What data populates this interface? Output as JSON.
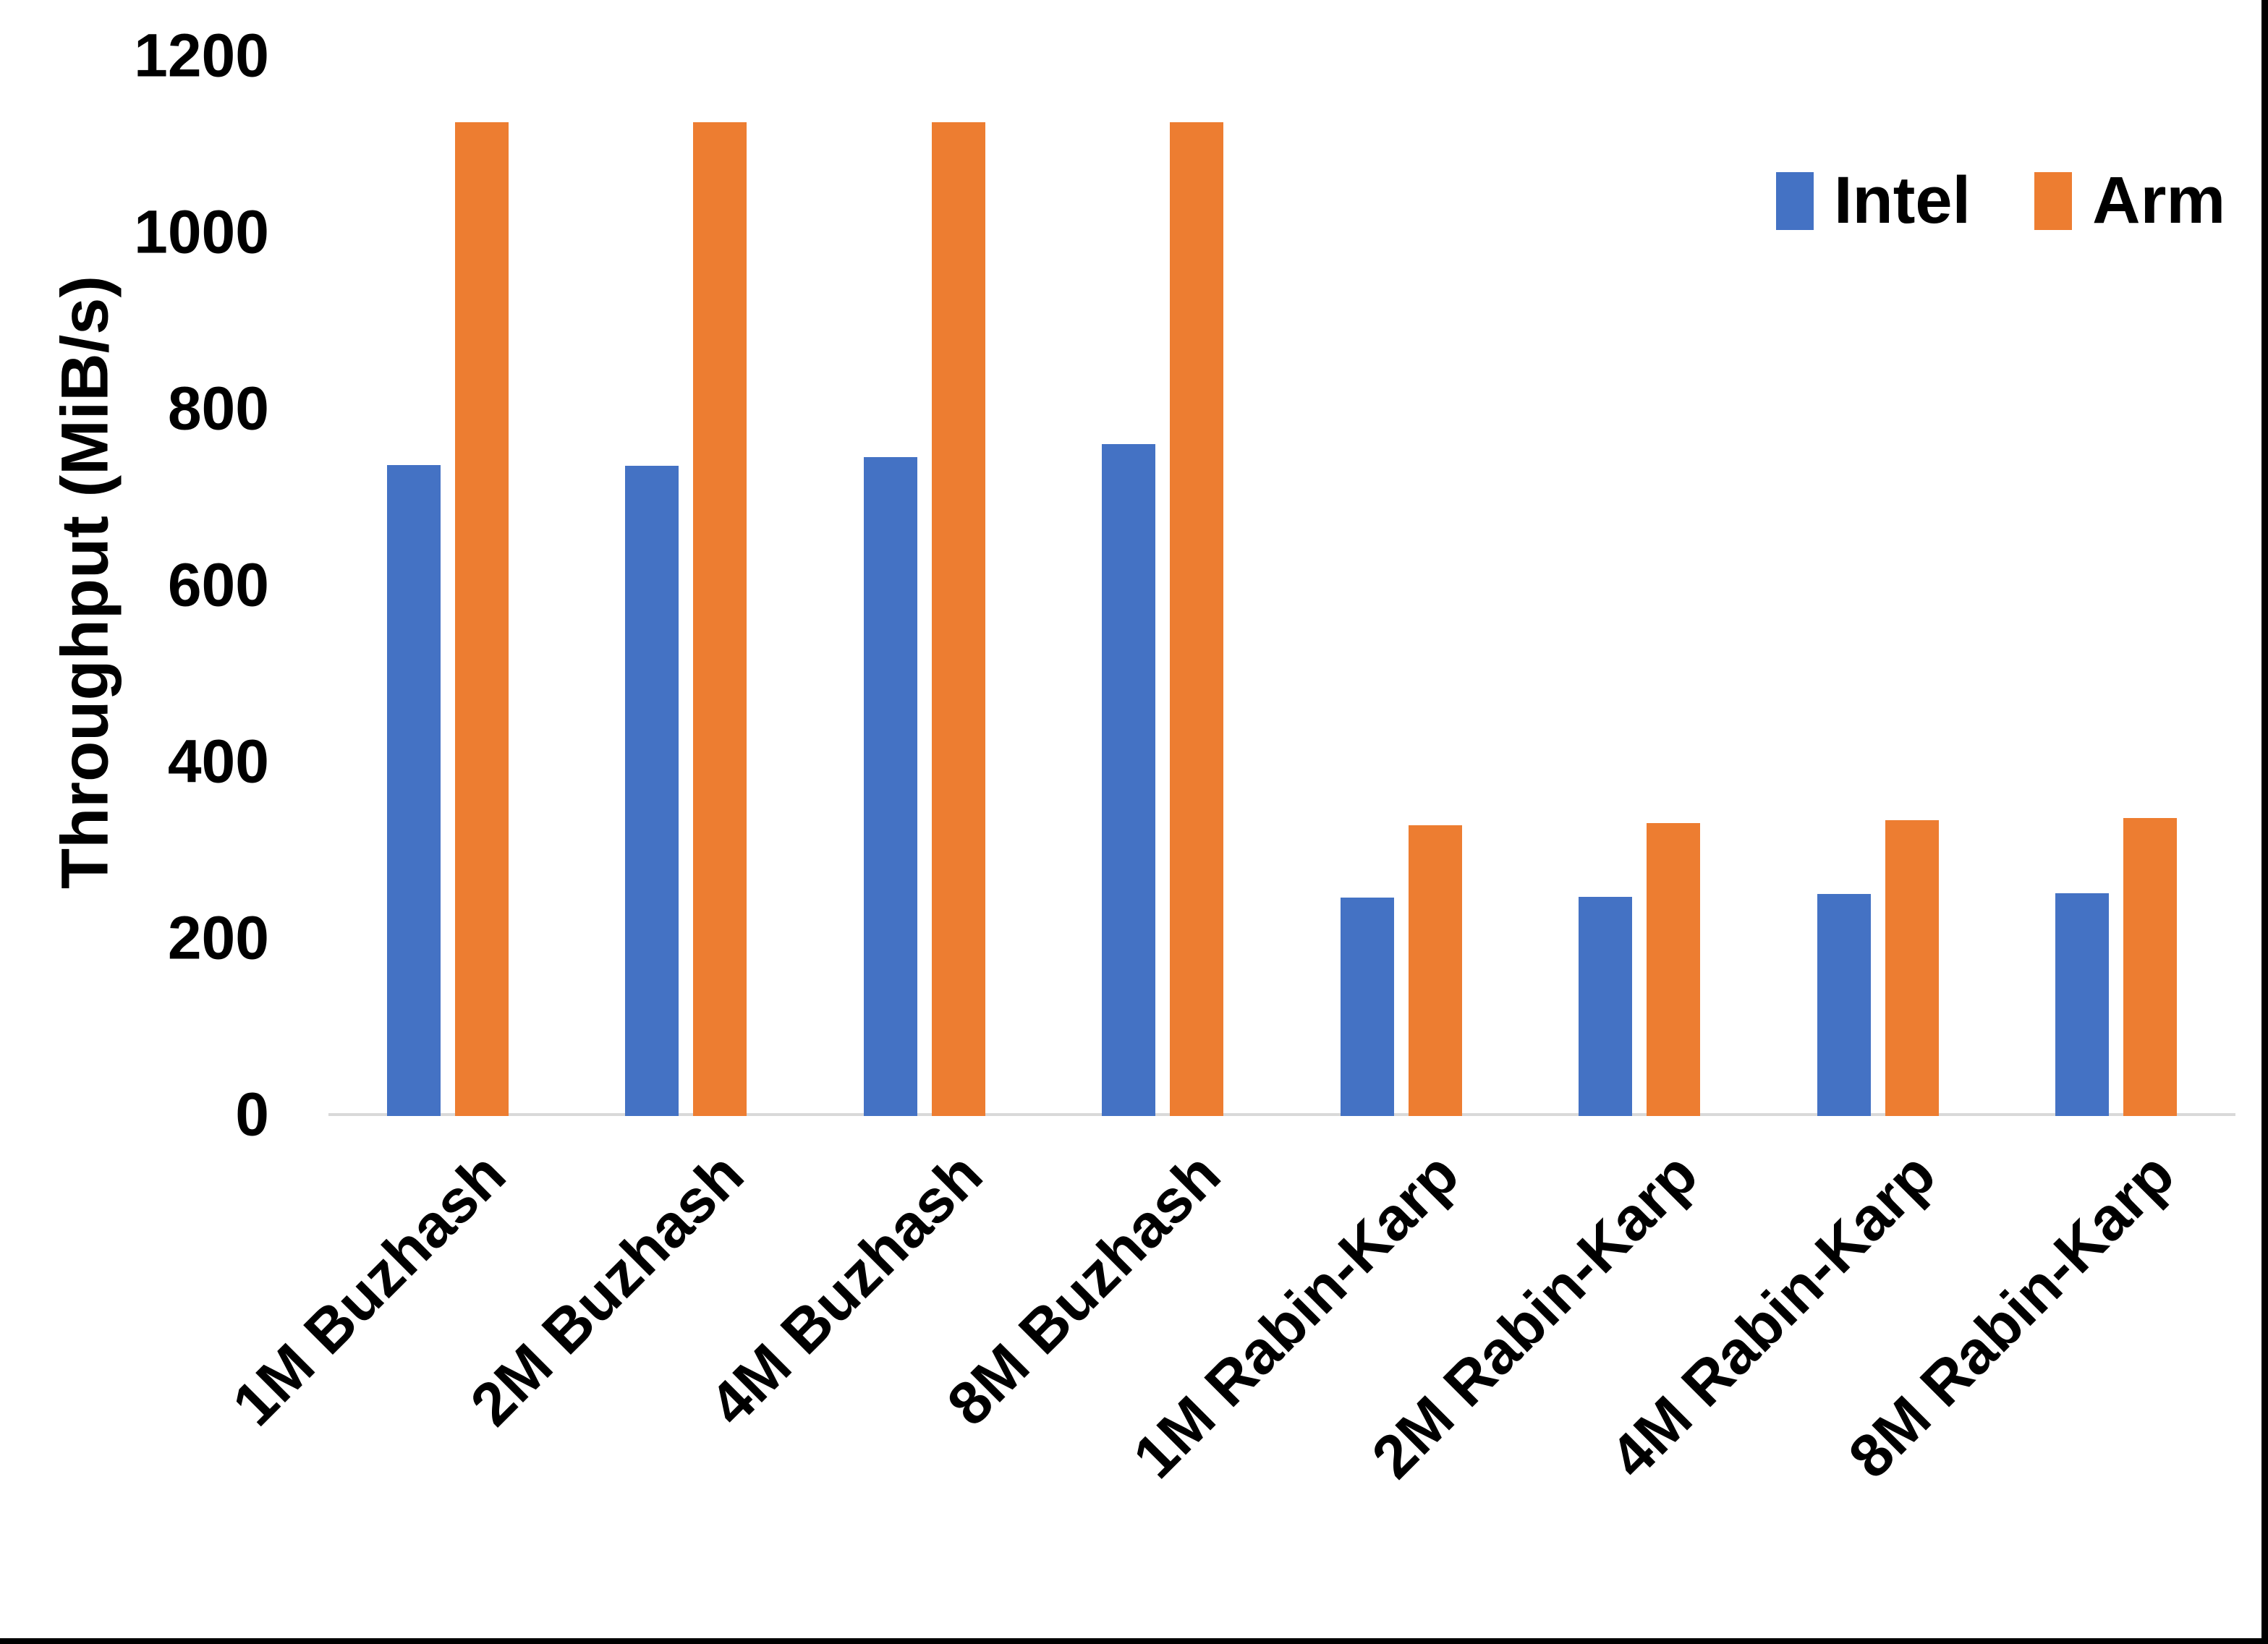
{
  "chart_data": {
    "type": "bar",
    "title": "",
    "ylabel": "Throughput (MiB/s)",
    "xlabel": "",
    "ylim": [
      0,
      1200
    ],
    "yticks": [
      0,
      200,
      400,
      600,
      800,
      1000,
      1200
    ],
    "grid": false,
    "legend_position": "top-right",
    "axis_line_color": "#d9d9d9",
    "text_color": "#000000",
    "categories": [
      "1M Buzhash",
      "2M Buzhash",
      "4M Buzhash",
      "8M Buzhash",
      "1M Rabin-Karp",
      "2M Rabin-Karp",
      "4M Rabin-Karp",
      "8M Rabin-Karp"
    ],
    "series": [
      {
        "name": "Intel",
        "color": "#4472C4",
        "values": [
          736,
          735,
          745,
          760,
          246,
          247,
          250,
          251
        ]
      },
      {
        "name": "Arm",
        "color": "#ED7D31",
        "values": [
          1125,
          1125,
          1125,
          1125,
          328,
          330,
          334,
          336
        ]
      }
    ]
  }
}
